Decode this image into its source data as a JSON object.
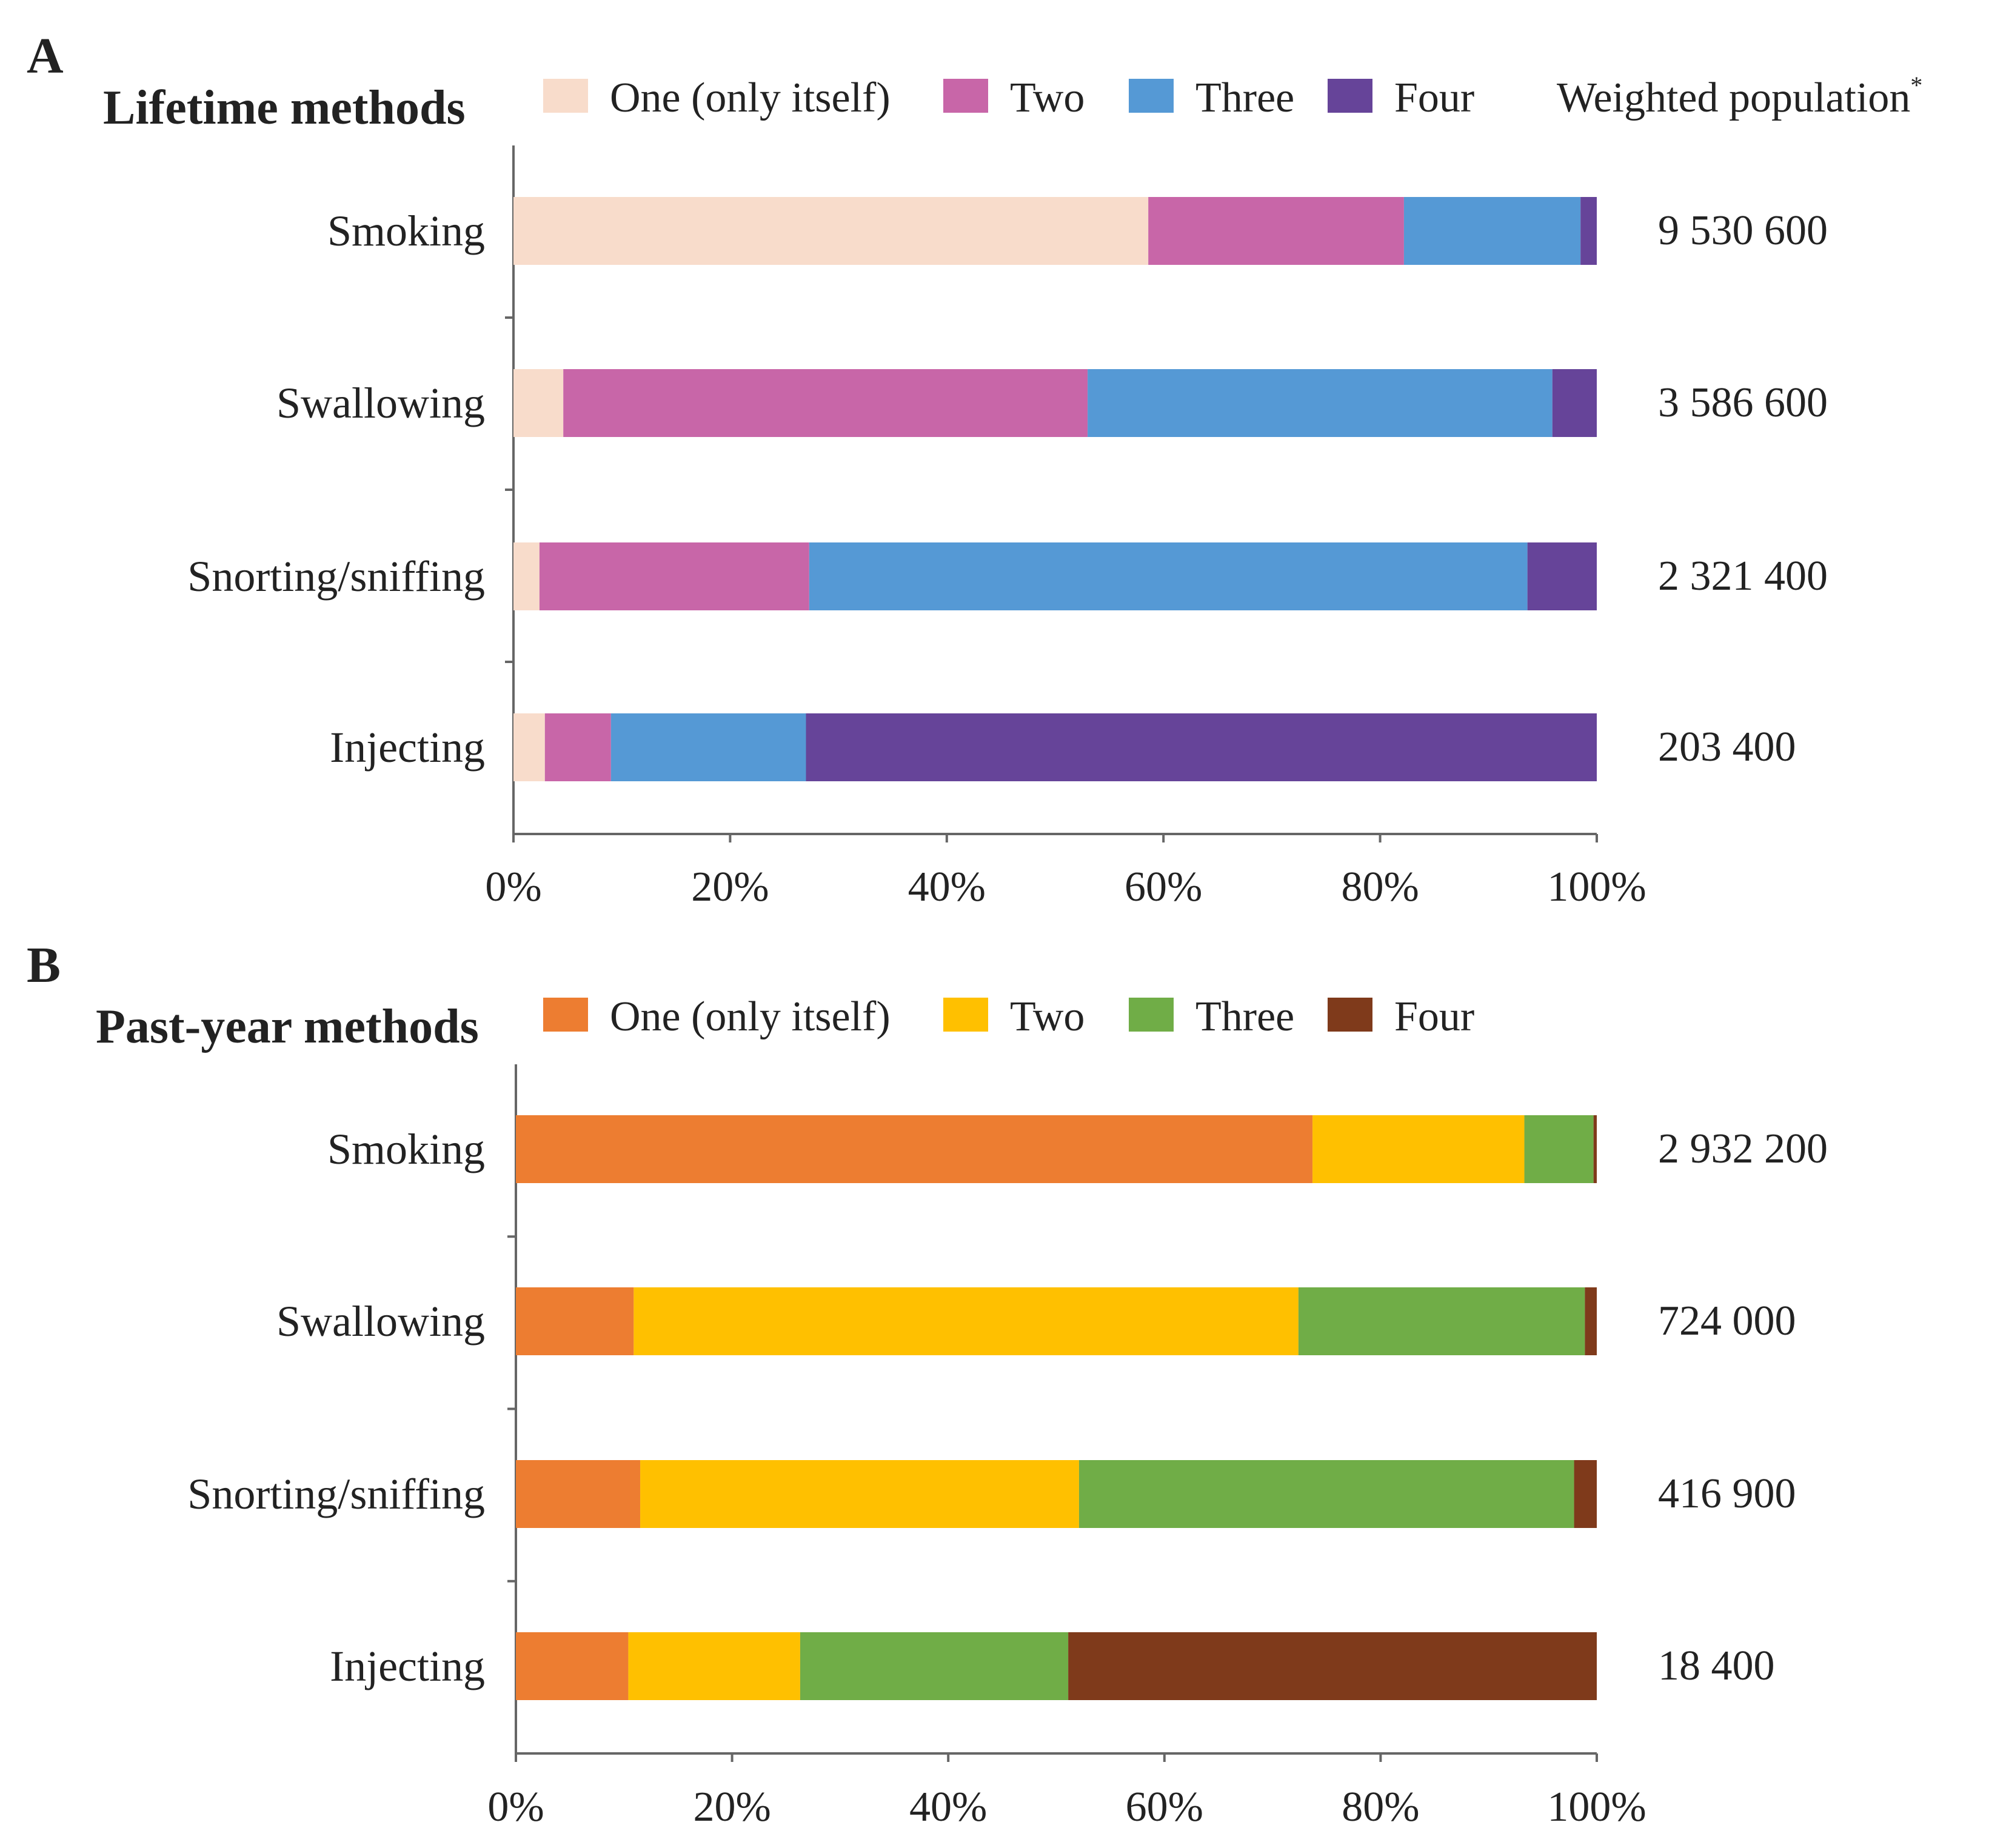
{
  "legend_header": "Weighted population",
  "legend_header_mark": "*",
  "chart_data": [
    {
      "type": "bar",
      "orientation": "horizontal",
      "stacked": true,
      "panel": "A",
      "title": "Lifetime methods",
      "categories": [
        "Smoking",
        "Swallowing",
        "Snorting/sniffing",
        "Injecting"
      ],
      "series": [
        {
          "name": "One (only itself)",
          "color": "#F8DCCB",
          "values": [
            58.6,
            4.6,
            2.4,
            2.9
          ]
        },
        {
          "name": "Two",
          "color": "#C866A8",
          "values": [
            23.6,
            48.4,
            24.9,
            6.1
          ]
        },
        {
          "name": "Three",
          "color": "#5599D5",
          "values": [
            16.3,
            42.9,
            66.3,
            18.0
          ]
        },
        {
          "name": "Four",
          "color": "#664499",
          "values": [
            1.5,
            4.1,
            6.4,
            73.0
          ]
        }
      ],
      "weighted_population": [
        "9 530 600",
        "3 586 600",
        "2 321 400",
        "203 400"
      ],
      "xlim": [
        0,
        100
      ],
      "xticks": [
        "0%",
        "20%",
        "40%",
        "60%",
        "80%",
        "100%"
      ]
    },
    {
      "type": "bar",
      "orientation": "horizontal",
      "stacked": true,
      "panel": "B",
      "title": "Past-year methods",
      "categories": [
        "Smoking",
        "Swallowing",
        "Snorting/sniffing",
        "Injecting"
      ],
      "series": [
        {
          "name": "One (only itself)",
          "color": "#ED7D31",
          "values": [
            73.7,
            10.9,
            11.5,
            10.4
          ]
        },
        {
          "name": "Two",
          "color": "#FFC000",
          "values": [
            19.6,
            61.5,
            40.6,
            15.9
          ]
        },
        {
          "name": "Three",
          "color": "#70AD47",
          "values": [
            6.4,
            26.5,
            45.8,
            24.8
          ]
        },
        {
          "name": "Four",
          "color": "#7F3A1B",
          "values": [
            0.3,
            1.1,
            2.1,
            48.9
          ]
        }
      ],
      "weighted_population": [
        "2 932 200",
        "724 000",
        "416 900",
        "18 400"
      ],
      "xlim": [
        0,
        100
      ],
      "xticks": [
        "0%",
        "20%",
        "40%",
        "60%",
        "80%",
        "100%"
      ]
    }
  ]
}
